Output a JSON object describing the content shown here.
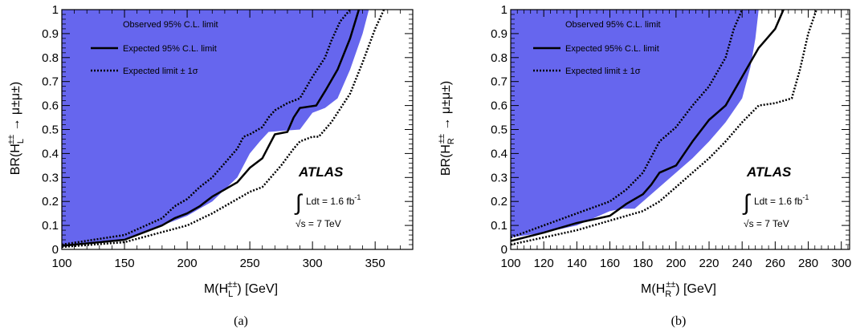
{
  "colors": {
    "observed": "#6666ee",
    "line": "#000000"
  },
  "panels": [
    {
      "caption": "(a)",
      "atlas": "ATLAS",
      "lumi_integral": "∫",
      "lumi_text": "Ldt = 1.6 fb",
      "lumi_exp": "-1",
      "energy_text": "√s = 7 TeV",
      "legend": [
        "Observed 95% C.L. limit",
        "Expected 95% C.L. limit",
        "Expected limit ± 1σ"
      ],
      "xlabel": {
        "base": "M(H",
        "sub": "L",
        "sup": "±±",
        "tail": ") [GeV]"
      },
      "ylabel": {
        "base": "BR(H",
        "sub": "L",
        "sup": "±±",
        "tail": " → μ±μ±)"
      }
    },
    {
      "caption": "(b)",
      "atlas": "ATLAS",
      "lumi_integral": "∫",
      "lumi_text": "Ldt = 1.6 fb",
      "lumi_exp": "-1",
      "energy_text": "√s = 7 TeV",
      "legend": [
        "Observed 95% C.L. limit",
        "Expected 95% C.L. limit",
        "Expected limit ± 1σ"
      ],
      "xlabel": {
        "base": "M(H",
        "sub": "R",
        "sup": "±±",
        "tail": ") [GeV]"
      },
      "ylabel": {
        "base": "BR(H",
        "sub": "R",
        "sup": "±±",
        "tail": " → μ±μ±)"
      }
    }
  ],
  "chart_data": [
    {
      "type": "area",
      "xlim": [
        100,
        380
      ],
      "ylim": [
        0,
        1
      ],
      "xticks": [
        "100",
        "150",
        "200",
        "250",
        "300",
        "350"
      ],
      "yticks": [
        "0",
        "0.1",
        "0.2",
        "0.3",
        "0.4",
        "0.5",
        "0.6",
        "0.7",
        "0.8",
        "0.9",
        "1"
      ],
      "series": [
        {
          "name": "Observed 95% C.L. limit",
          "style": "filled",
          "x": [
            100,
            150,
            190,
            200,
            220,
            230,
            240,
            250,
            258,
            265,
            290,
            300,
            310,
            320,
            330,
            340,
            345
          ],
          "y": [
            0.01,
            0.04,
            0.12,
            0.14,
            0.2,
            0.25,
            0.3,
            0.4,
            0.45,
            0.49,
            0.5,
            0.57,
            0.59,
            0.63,
            0.75,
            0.9,
            1.0
          ]
        },
        {
          "name": "Expected 95% C.L. limit",
          "style": "solid",
          "x": [
            100,
            150,
            180,
            190,
            200,
            210,
            220,
            230,
            240,
            245,
            250,
            260,
            265,
            270,
            280,
            285,
            290,
            303,
            310,
            320,
            330,
            337
          ],
          "y": [
            0.015,
            0.04,
            0.1,
            0.13,
            0.15,
            0.18,
            0.22,
            0.25,
            0.28,
            0.31,
            0.34,
            0.38,
            0.43,
            0.48,
            0.49,
            0.55,
            0.59,
            0.6,
            0.66,
            0.75,
            0.88,
            1.0
          ]
        },
        {
          "name": "Expected limit ± 1σ",
          "style": "dotted",
          "x": [
            100,
            150,
            180,
            190,
            200,
            210,
            220,
            230,
            240,
            245,
            250,
            260,
            265,
            270,
            280,
            290,
            300,
            310,
            315,
            322,
            330
          ],
          "y": [
            0.02,
            0.06,
            0.13,
            0.18,
            0.21,
            0.26,
            0.3,
            0.36,
            0.42,
            0.47,
            0.48,
            0.51,
            0.55,
            0.58,
            0.61,
            0.63,
            0.72,
            0.8,
            0.87,
            0.95,
            1.0
          ]
        },
        {
          "name": "Expected limit ± 1σ",
          "style": "dotted",
          "x": [
            100,
            150,
            200,
            220,
            240,
            250,
            260,
            275,
            285,
            290,
            300,
            305,
            315,
            330,
            340,
            350,
            357
          ],
          "y": [
            0.01,
            0.03,
            0.1,
            0.15,
            0.21,
            0.24,
            0.26,
            0.35,
            0.42,
            0.45,
            0.47,
            0.47,
            0.53,
            0.65,
            0.78,
            0.92,
            1.0
          ]
        }
      ]
    },
    {
      "type": "area",
      "xlim": [
        100,
        305
      ],
      "ylim": [
        0,
        1
      ],
      "xticks": [
        "100",
        "120",
        "140",
        "160",
        "180",
        "200",
        "220",
        "240",
        "260",
        "280",
        "300"
      ],
      "yticks": [
        "0",
        "0.1",
        "0.2",
        "0.3",
        "0.4",
        "0.5",
        "0.6",
        "0.7",
        "0.8",
        "0.9",
        "1"
      ],
      "series": [
        {
          "name": "Observed 95% C.L. limit",
          "style": "filled",
          "x": [
            100,
            120,
            140,
            160,
            168,
            175,
            180,
            190,
            200,
            210,
            220,
            230,
            240,
            245,
            248,
            250
          ],
          "y": [
            0.05,
            0.07,
            0.1,
            0.16,
            0.17,
            0.17,
            0.2,
            0.26,
            0.32,
            0.38,
            0.45,
            0.53,
            0.63,
            0.76,
            0.88,
            1.0
          ]
        },
        {
          "name": "Expected 95% C.L. limit",
          "style": "solid",
          "x": [
            100,
            120,
            140,
            160,
            170,
            180,
            185,
            190,
            200,
            210,
            220,
            230,
            240,
            245,
            250,
            255,
            260,
            265
          ],
          "y": [
            0.035,
            0.07,
            0.11,
            0.14,
            0.19,
            0.23,
            0.27,
            0.32,
            0.35,
            0.45,
            0.54,
            0.6,
            0.72,
            0.78,
            0.84,
            0.88,
            0.92,
            1.0
          ]
        },
        {
          "name": "Expected limit ± 1σ",
          "style": "dotted",
          "x": [
            100,
            120,
            140,
            160,
            170,
            180,
            190,
            200,
            210,
            220,
            230,
            235,
            240
          ],
          "y": [
            0.05,
            0.1,
            0.15,
            0.2,
            0.25,
            0.32,
            0.45,
            0.51,
            0.6,
            0.68,
            0.8,
            0.92,
            1.0
          ]
        },
        {
          "name": "Expected limit ± 1σ",
          "style": "dotted",
          "x": [
            100,
            120,
            140,
            160,
            180,
            190,
            200,
            210,
            220,
            230,
            240,
            250,
            260,
            270,
            275,
            280,
            285
          ],
          "y": [
            0.02,
            0.05,
            0.08,
            0.12,
            0.16,
            0.2,
            0.26,
            0.32,
            0.38,
            0.45,
            0.53,
            0.6,
            0.61,
            0.63,
            0.75,
            0.9,
            1.0
          ]
        }
      ]
    }
  ]
}
